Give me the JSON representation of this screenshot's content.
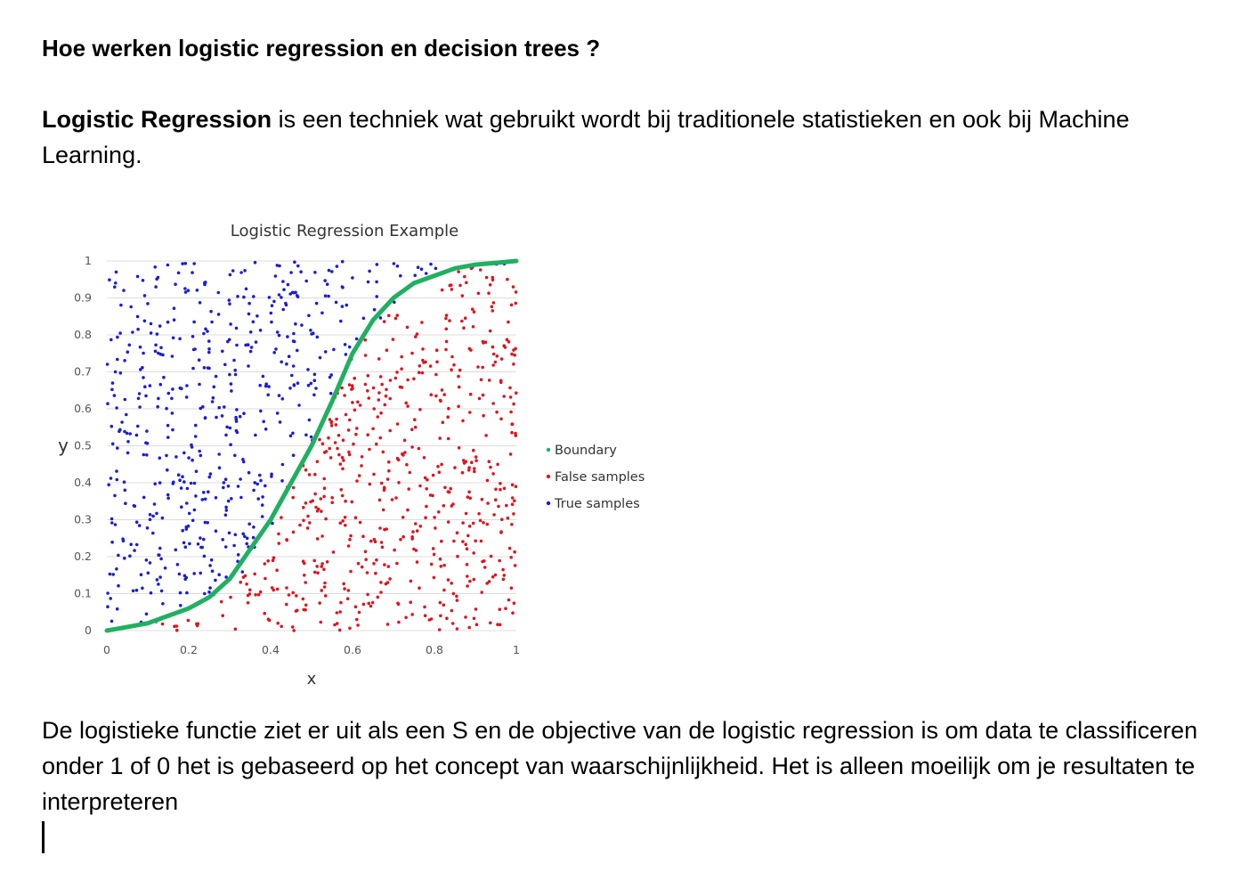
{
  "document": {
    "heading": "Hoe werken logistic regression en decision trees ?",
    "para1_bold": "Logistic Regression",
    "para1_rest": " is een techniek wat gebruikt wordt bij traditionele statistieken en ook bij Machine Learning.",
    "para2": "De logistieke functie ziet er uit als een S en de objective van de logistic regression is om data te classificeren onder 1 of 0 het is gebaseerd op het concept van waarschijnlijkheid. Het is alleen moeilijk om je resultaten te interpreteren"
  },
  "chart_data": {
    "type": "scatter",
    "title": "Logistic Regression Example",
    "xlabel": "x",
    "ylabel": "y",
    "xlim": [
      0,
      1
    ],
    "ylim": [
      0,
      1
    ],
    "xticks": [
      "0",
      "0.2",
      "0.4",
      "0.6",
      "0.8",
      "1"
    ],
    "yticks": [
      "0",
      "0.1",
      "0.2",
      "0.3",
      "0.4",
      "0.5",
      "0.6",
      "0.7",
      "0.8",
      "0.9",
      "1"
    ],
    "grid": "horizontal",
    "legend_position": "right",
    "series": [
      {
        "name": "Boundary",
        "color": "#1fb060",
        "function": "logistic",
        "x": [
          0,
          0.05,
          0.1,
          0.15,
          0.2,
          0.25,
          0.3,
          0.35,
          0.4,
          0.45,
          0.5,
          0.55,
          0.6,
          0.65,
          0.7,
          0.75,
          0.8,
          0.85,
          0.9,
          0.95,
          1.0
        ],
        "y": [
          0.0,
          0.01,
          0.02,
          0.04,
          0.06,
          0.09,
          0.14,
          0.22,
          0.3,
          0.4,
          0.5,
          0.62,
          0.75,
          0.84,
          0.9,
          0.94,
          0.96,
          0.98,
          0.99,
          0.995,
          1.0
        ]
      },
      {
        "name": "False samples",
        "color": "#e0141e"
      },
      {
        "name": "True samples",
        "color": "#1a1ed6"
      }
    ]
  }
}
